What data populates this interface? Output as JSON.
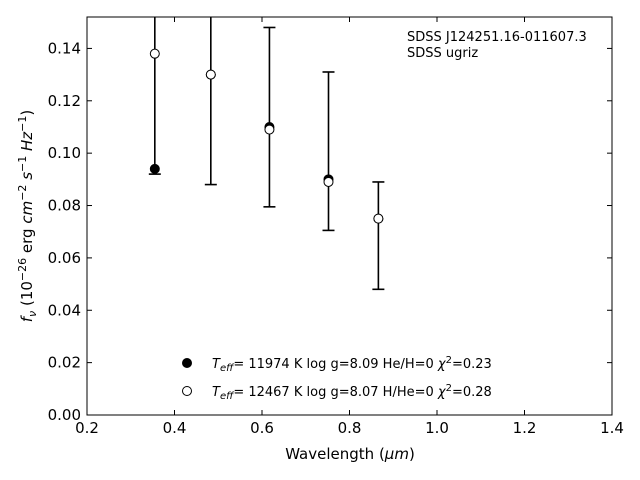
{
  "chart_data": {
    "type": "scatter",
    "xlabel_main": "Wavelength (",
    "xlabel_unit": "μm",
    "xlabel_close": ")",
    "ylabel": {
      "f": "f",
      "nu": "ν",
      "open": " (10",
      "exp1": "−26",
      "erg": " erg ",
      "cm": "cm",
      "exp2": "−2",
      "s": " s",
      "exp3": "−1",
      "hz": " Hz",
      "exp4": "−1",
      "close": ")"
    },
    "xlim": [
      0.2,
      1.4
    ],
    "ylim": [
      0.0,
      0.152
    ],
    "xticks": [
      0.2,
      0.4,
      0.6,
      0.8,
      1.0,
      1.2,
      1.4
    ],
    "yticks": [
      0.0,
      0.02,
      0.04,
      0.06,
      0.08,
      0.1,
      0.12,
      0.14
    ],
    "xtick_labels": [
      "0.2",
      "0.4",
      "0.6",
      "0.8",
      "1.0",
      "1.2",
      "1.4"
    ],
    "ytick_labels": [
      "0.00",
      "0.02",
      "0.04",
      "0.06",
      "0.08",
      "0.10",
      "0.12",
      "0.14"
    ],
    "annotation_lines": [
      "SDSS J124251.16-011607.3",
      "SDSS ugriz"
    ],
    "observed": {
      "x": [
        0.355,
        0.483,
        0.617,
        0.752,
        0.866
      ],
      "y": [
        0.094,
        0.13,
        0.11,
        0.09,
        0.075
      ],
      "yerr_low": [
        0.092,
        0.088,
        0.0795,
        0.0705,
        0.048
      ],
      "yerr_high": [
        0.17,
        0.172,
        0.148,
        0.131,
        0.089
      ]
    },
    "series": [
      {
        "marker": "filled",
        "color": "#000000",
        "x": [
          0.355,
          0.483,
          0.617,
          0.752,
          0.866
        ],
        "y": [
          0.094,
          0.13,
          0.11,
          0.09,
          0.075
        ],
        "legend": {
          "T": "T",
          "sub": "eff",
          "rest": "= 11974 K  log g=8.09  He/H=0  ",
          "chi": "χ",
          "sup": "2",
          "chival": "=0.23"
        }
      },
      {
        "marker": "open",
        "color": "#000000",
        "x": [
          0.355,
          0.483,
          0.617,
          0.752,
          0.866
        ],
        "y": [
          0.138,
          0.13,
          0.109,
          0.089,
          0.075
        ],
        "legend": {
          "T": "T",
          "sub": "eff",
          "rest": "= 12467 K  log g=8.07  H/He=0  ",
          "chi": "χ",
          "sup": "2",
          "chival": "=0.28"
        }
      }
    ],
    "legend_location": "lower-center"
  }
}
